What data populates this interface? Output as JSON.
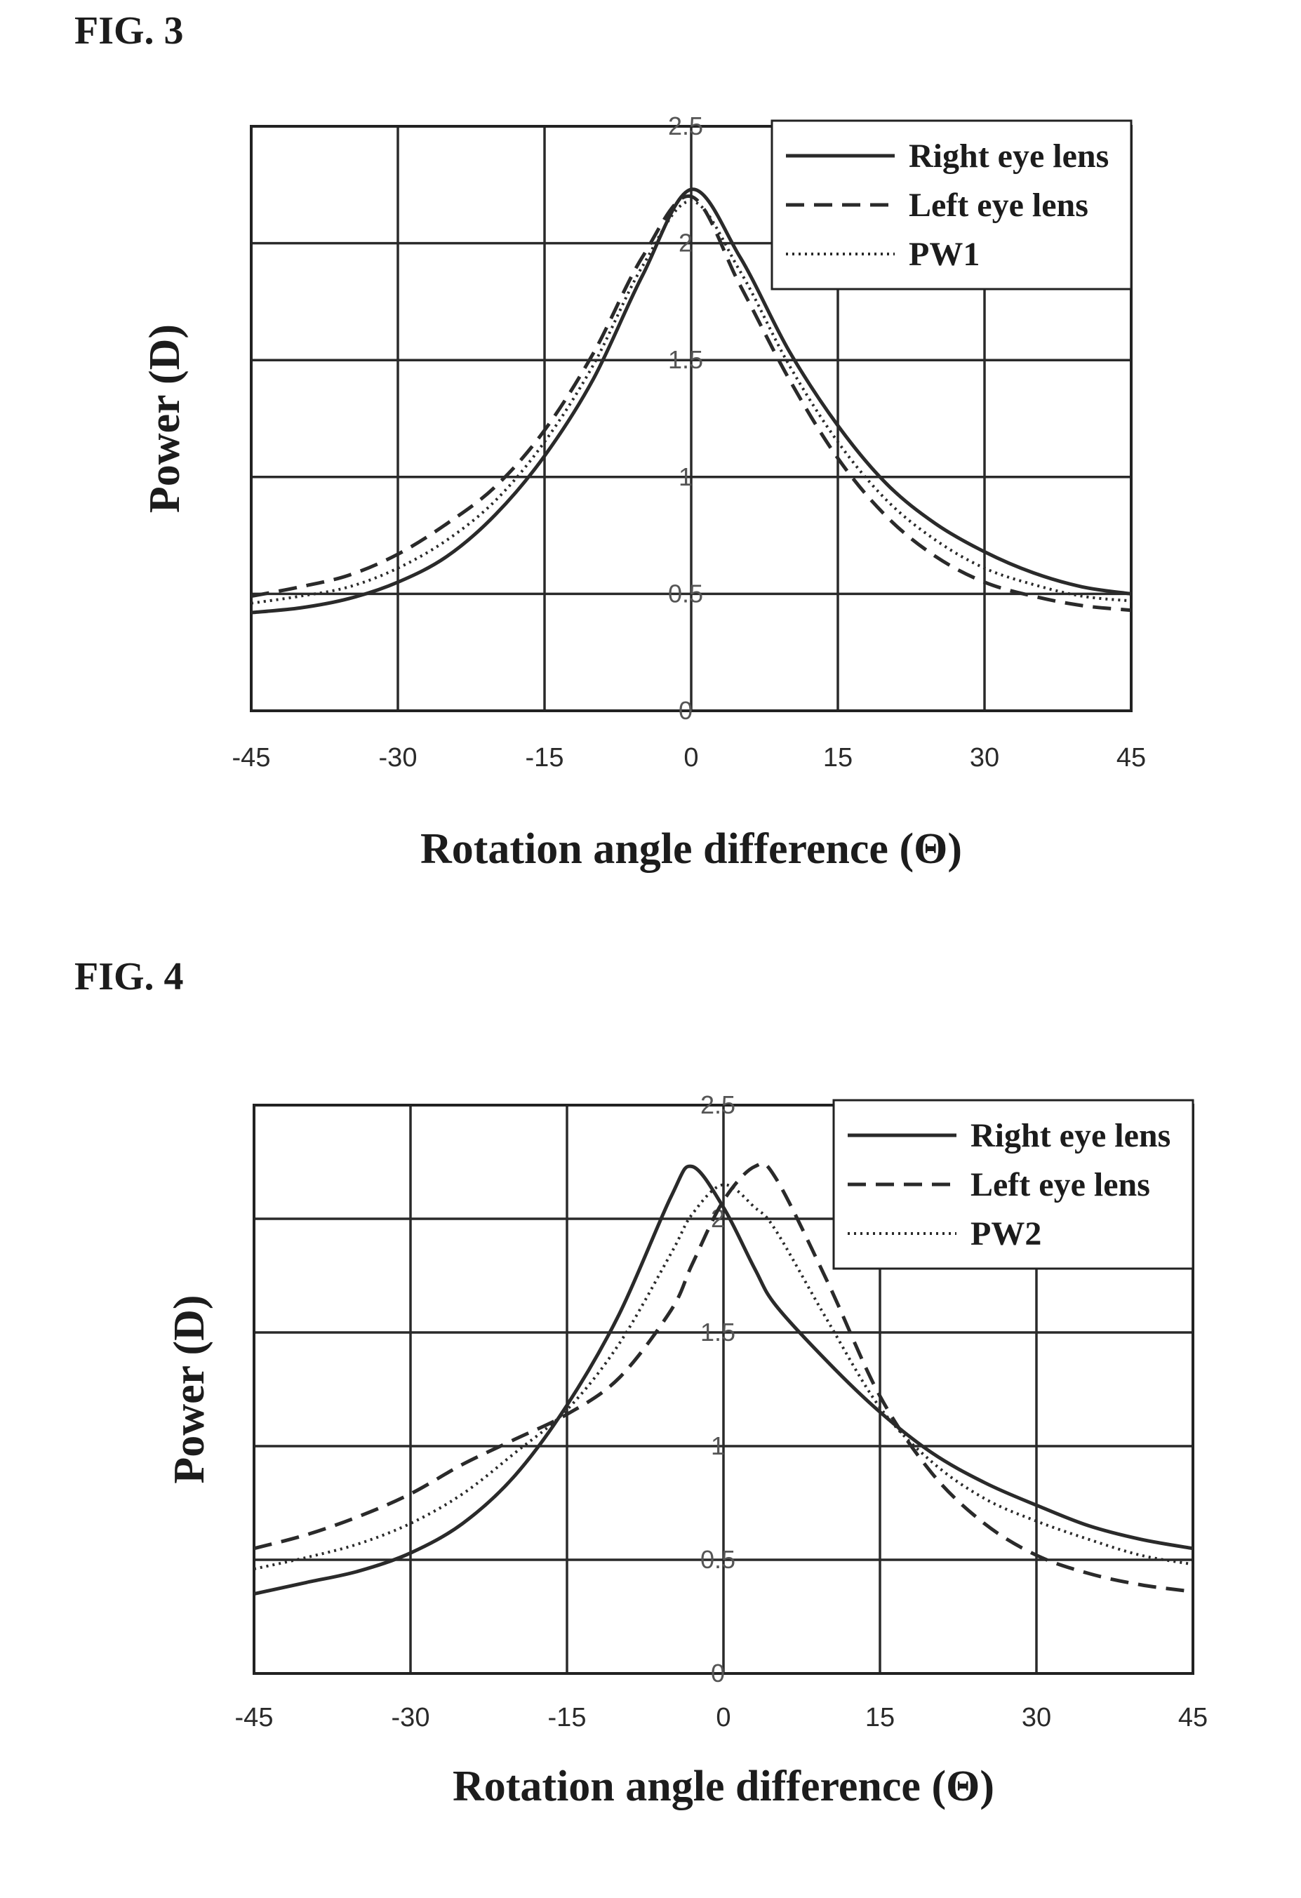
{
  "figures": [
    {
      "label": "FIG. 3"
    },
    {
      "label": "FIG. 4"
    }
  ],
  "chart_data": [
    {
      "type": "line",
      "figure": "FIG. 3",
      "xlabel": "Rotation angle difference (Θ)",
      "ylabel": "Power (D)",
      "xlim": [
        -45,
        45
      ],
      "ylim": [
        0,
        2.5
      ],
      "x_ticks": [
        "-45",
        "-30",
        "-15",
        "0",
        "15",
        "30",
        "45"
      ],
      "y_ticks": [
        "0",
        "0.5",
        "1",
        "1.5",
        "2",
        "2.5"
      ],
      "grid": true,
      "legend_position": "top-right",
      "x": [
        -45,
        -40,
        -35,
        -30,
        -25,
        -20,
        -15,
        -10,
        -5,
        0,
        5,
        10,
        15,
        20,
        25,
        30,
        35,
        40,
        45
      ],
      "series": [
        {
          "name": "Right eye lens",
          "style": "solid",
          "values": [
            0.42,
            0.44,
            0.48,
            0.55,
            0.66,
            0.84,
            1.09,
            1.42,
            1.86,
            2.23,
            1.94,
            1.54,
            1.22,
            0.97,
            0.8,
            0.68,
            0.59,
            0.53,
            0.5
          ]
        },
        {
          "name": "Left eye lens",
          "style": "dashed",
          "values": [
            0.49,
            0.53,
            0.58,
            0.67,
            0.8,
            0.96,
            1.2,
            1.53,
            1.94,
            2.2,
            1.82,
            1.42,
            1.08,
            0.83,
            0.66,
            0.55,
            0.49,
            0.45,
            0.43
          ]
        },
        {
          "name": "PW1",
          "style": "dotted",
          "values": [
            0.46,
            0.49,
            0.53,
            0.61,
            0.73,
            0.9,
            1.15,
            1.48,
            1.9,
            2.18,
            1.88,
            1.48,
            1.15,
            0.9,
            0.73,
            0.61,
            0.54,
            0.49,
            0.47
          ]
        }
      ]
    },
    {
      "type": "line",
      "figure": "FIG. 4",
      "xlabel": "Rotation angle difference (Θ)",
      "ylabel": "Power (D)",
      "xlim": [
        -45,
        45
      ],
      "ylim": [
        0,
        2.5
      ],
      "x_ticks": [
        "-45",
        "-30",
        "-15",
        "0",
        "15",
        "30",
        "45"
      ],
      "y_ticks": [
        "0",
        "0.5",
        "1",
        "1.5",
        "2",
        "2.5"
      ],
      "grid": true,
      "legend_position": "top-right",
      "x": [
        -45,
        -40,
        -35,
        -30,
        -25,
        -20,
        -15,
        -10,
        -5,
        -3,
        0,
        3,
        5,
        10,
        15,
        20,
        25,
        30,
        35,
        40,
        45
      ],
      "series": [
        {
          "name": "Right eye lens",
          "style": "solid",
          "values": [
            0.35,
            0.4,
            0.45,
            0.53,
            0.66,
            0.87,
            1.18,
            1.58,
            2.1,
            2.23,
            2.05,
            1.78,
            1.62,
            1.37,
            1.15,
            0.97,
            0.84,
            0.74,
            0.65,
            0.59,
            0.55
          ]
        },
        {
          "name": "Left eye lens",
          "style": "dashed",
          "values": [
            0.55,
            0.61,
            0.69,
            0.79,
            0.92,
            1.03,
            1.14,
            1.3,
            1.6,
            1.8,
            2.08,
            2.23,
            2.18,
            1.72,
            1.22,
            0.88,
            0.66,
            0.52,
            0.44,
            0.39,
            0.36
          ]
        },
        {
          "name": "PW2",
          "style": "dotted",
          "values": [
            0.46,
            0.51,
            0.57,
            0.66,
            0.79,
            0.97,
            1.16,
            1.45,
            1.85,
            2.02,
            2.15,
            2.05,
            1.95,
            1.55,
            1.17,
            0.93,
            0.77,
            0.67,
            0.59,
            0.52,
            0.48
          ]
        }
      ]
    }
  ]
}
